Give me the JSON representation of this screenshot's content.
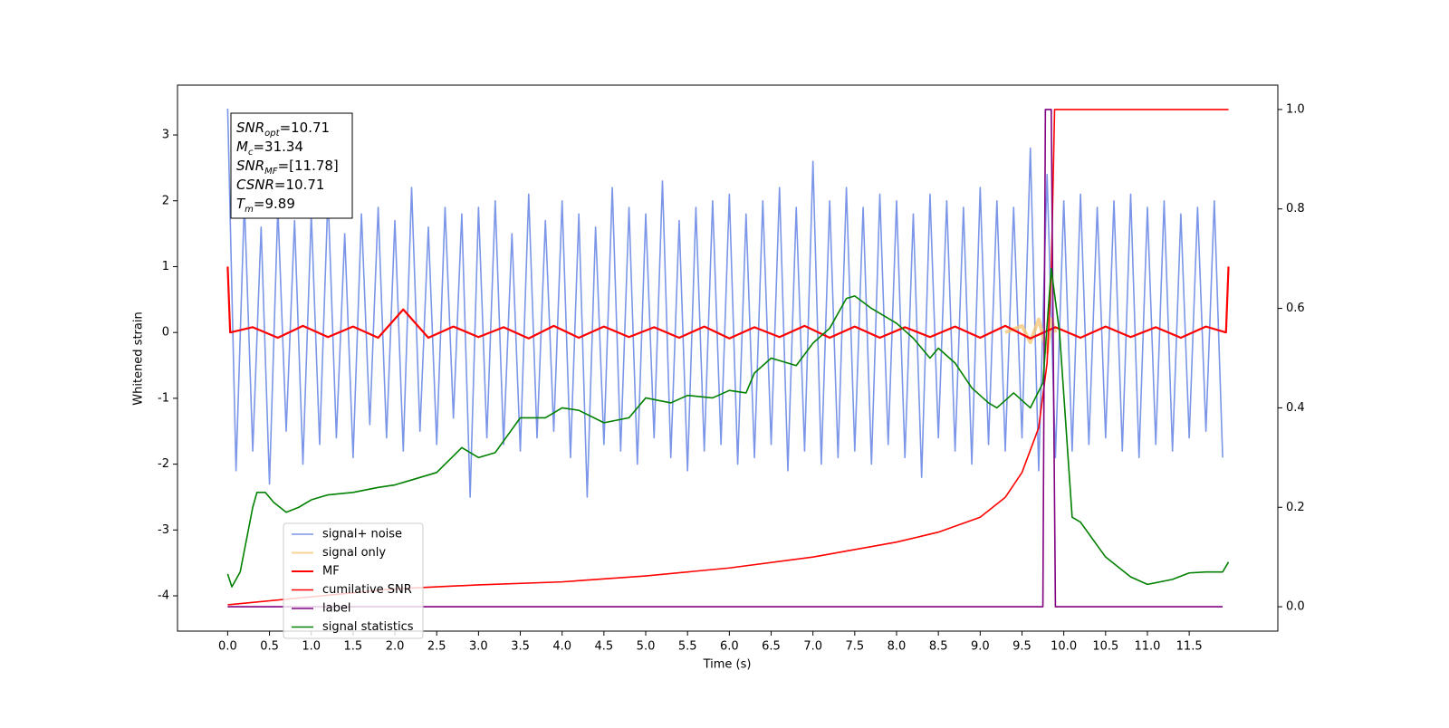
{
  "chart_data": {
    "type": "line",
    "xlabel": "Time (s)",
    "ylabel": "Whitened strain",
    "xlim": [
      -0.6,
      12.56
    ],
    "ylim": [
      -4.536,
      3.757
    ],
    "y2lim": [
      -0.049,
      1.049
    ],
    "xticks": [
      {
        "value": 0,
        "label": "0.0"
      },
      0.5,
      {
        "value": 1,
        "label": "1.0"
      },
      1.5,
      {
        "value": 2,
        "label": "2.0"
      },
      2.5,
      {
        "value": 3,
        "label": "3.0"
      },
      3.5,
      {
        "value": 4,
        "label": "4.0"
      },
      4.5,
      {
        "value": 5,
        "label": "5.0"
      },
      5.5,
      {
        "value": 6,
        "label": "6.0"
      },
      6.5,
      {
        "value": 7,
        "label": "7.0"
      },
      7.5,
      {
        "value": 8,
        "label": "8.0"
      },
      8.5,
      {
        "value": 9,
        "label": "9.0"
      },
      9.5,
      {
        "value": 10,
        "label": "10.0"
      },
      10.5,
      {
        "value": 11,
        "label": "11.0"
      },
      11.5
    ],
    "yticks": [
      -4,
      -3,
      -2,
      -1,
      0,
      1,
      2,
      3
    ],
    "y2ticks": [
      {
        "value": 0,
        "label": "0.0"
      },
      0.2,
      0.4,
      0.6,
      0.8,
      {
        "value": 1,
        "label": "1.0"
      }
    ],
    "legend": "lower left",
    "annotation": [
      {
        "symbol": "SNR",
        "subscript": "opt",
        "value": "=10.71"
      },
      {
        "symbol": "M",
        "subscript": "c",
        "value": "=31.34"
      },
      {
        "symbol": "SNR",
        "subscript": "MF",
        "value": "=[11.78]"
      },
      {
        "symbol": "CSNR",
        "value": "=10.71"
      },
      {
        "symbol": "T",
        "subscript": "m",
        "value": "=9.89"
      }
    ],
    "series": [
      {
        "name": "signal+ noise",
        "color": "#7b96e8",
        "x": [
          0.0,
          0.1,
          0.2,
          0.3,
          0.4,
          0.5,
          0.6,
          0.7,
          0.8,
          0.9,
          1.0,
          1.1,
          1.2,
          1.3,
          1.4,
          1.5,
          1.6,
          1.7,
          1.8,
          1.9,
          2.0,
          2.1,
          2.2,
          2.3,
          2.4,
          2.5,
          2.6,
          2.7,
          2.8,
          2.9,
          3.0,
          3.1,
          3.2,
          3.3,
          3.4,
          3.5,
          3.6,
          3.7,
          3.8,
          3.9,
          4.0,
          4.1,
          4.2,
          4.3,
          4.4,
          4.5,
          4.6,
          4.7,
          4.8,
          4.9,
          5.0,
          5.1,
          5.2,
          5.3,
          5.4,
          5.5,
          5.6,
          5.7,
          5.8,
          5.9,
          6.0,
          6.1,
          6.2,
          6.3,
          6.4,
          6.5,
          6.6,
          6.7,
          6.8,
          6.9,
          7.0,
          7.1,
          7.2,
          7.3,
          7.4,
          7.5,
          7.6,
          7.7,
          7.8,
          7.9,
          8.0,
          8.1,
          8.2,
          8.3,
          8.4,
          8.5,
          8.6,
          8.7,
          8.8,
          8.9,
          9.0,
          9.1,
          9.2,
          9.3,
          9.4,
          9.5,
          9.6,
          9.7,
          9.8,
          9.9,
          10.0,
          10.1,
          10.2,
          10.3,
          10.4,
          10.5,
          10.6,
          10.7,
          10.8,
          10.9,
          11.0,
          11.1,
          11.2,
          11.3,
          11.4,
          11.5,
          11.6,
          11.7,
          11.8,
          11.9
        ],
        "values": [
          3.4,
          -2.1,
          2.0,
          -1.8,
          1.6,
          -2.3,
          1.9,
          -1.5,
          1.7,
          -2.0,
          1.8,
          -1.7,
          2.1,
          -1.6,
          1.5,
          -1.9,
          1.8,
          -1.4,
          1.9,
          -1.6,
          1.7,
          -1.8,
          2.2,
          -1.5,
          1.6,
          -1.7,
          1.9,
          -1.3,
          1.8,
          -2.5,
          1.9,
          -1.6,
          2.0,
          -1.7,
          1.5,
          -1.8,
          2.1,
          -1.6,
          1.7,
          -1.5,
          2.0,
          -1.9,
          1.8,
          -2.5,
          1.6,
          -1.7,
          2.2,
          -1.8,
          1.9,
          -2.0,
          1.8,
          -1.6,
          2.3,
          -1.9,
          1.7,
          -2.1,
          1.9,
          -1.8,
          2.0,
          -1.7,
          2.1,
          -2.0,
          1.8,
          -1.9,
          2.0,
          -1.7,
          2.2,
          -2.1,
          1.9,
          -1.8,
          2.6,
          -2.0,
          2.0,
          -1.9,
          2.2,
          -1.8,
          1.9,
          -2.0,
          2.1,
          -1.7,
          2.0,
          -1.9,
          1.8,
          -2.2,
          2.1,
          -1.6,
          2.0,
          -1.8,
          1.9,
          -2.0,
          2.2,
          -1.7,
          2.0,
          -1.8,
          1.9,
          -1.6,
          2.8,
          -2.1,
          2.4,
          -1.9,
          2.0,
          -1.8,
          2.1,
          -1.7,
          1.9,
          -1.6,
          2.0,
          -1.8,
          2.1,
          -1.9,
          1.9,
          -1.7,
          2.0,
          -1.8,
          1.8,
          -1.6,
          1.9,
          -1.5,
          2.0,
          -1.9
        ]
      },
      {
        "name": "signal only",
        "color": "#f5c97a",
        "x": [
          9.3,
          9.5,
          9.6,
          9.7,
          9.8,
          9.85,
          9.9
        ],
        "values": [
          0,
          0.1,
          -0.15,
          0.2,
          -0.3,
          0.2,
          0
        ]
      },
      {
        "name": "MF",
        "color": "#ff0000",
        "x": [
          0,
          0.03,
          0.3,
          0.6,
          0.9,
          1.2,
          1.5,
          1.8,
          2.1,
          2.4,
          2.7,
          3.0,
          3.3,
          3.6,
          3.9,
          4.2,
          4.5,
          4.8,
          5.1,
          5.4,
          5.7,
          6.0,
          6.3,
          6.6,
          6.9,
          7.2,
          7.5,
          7.8,
          8.1,
          8.4,
          8.7,
          9.0,
          9.3,
          9.6,
          9.9,
          10.2,
          10.5,
          10.8,
          11.1,
          11.4,
          11.7,
          11.94,
          11.97
        ],
        "values": [
          1.0,
          0.0,
          0.08,
          -0.08,
          0.1,
          -0.07,
          0.09,
          -0.08,
          0.35,
          -0.08,
          0.09,
          -0.07,
          0.08,
          -0.09,
          0.1,
          -0.08,
          0.09,
          -0.07,
          0.08,
          -0.08,
          0.09,
          -0.09,
          0.08,
          -0.07,
          0.1,
          -0.08,
          0.09,
          -0.08,
          0.08,
          -0.07,
          0.09,
          -0.08,
          0.1,
          -0.09,
          0.08,
          -0.08,
          0.09,
          -0.07,
          0.08,
          -0.08,
          0.09,
          0.0,
          1.0
        ]
      },
      {
        "name": "cumilative SNR",
        "color": "#ff0000",
        "axis": "y2",
        "x": [
          0,
          1,
          2,
          3,
          4,
          5,
          6,
          7,
          8,
          8.5,
          9,
          9.3,
          9.5,
          9.7,
          9.8,
          9.85,
          9.89,
          11.97
        ],
        "values": [
          0.004,
          0.02,
          0.036,
          0.044,
          0.05,
          0.062,
          0.078,
          0.1,
          0.13,
          0.15,
          0.18,
          0.22,
          0.27,
          0.36,
          0.49,
          0.67,
          1.0,
          1.0
        ]
      },
      {
        "name": "label",
        "color": "#800080",
        "axis": "y2",
        "x": [
          0,
          9.75,
          9.78,
          9.85,
          9.9,
          11.9
        ],
        "values": [
          0,
          0,
          1,
          1,
          0,
          0
        ]
      },
      {
        "name": "signal statistics",
        "color": "#008000",
        "axis": "y2",
        "x": [
          0,
          0.05,
          0.15,
          0.3,
          0.35,
          0.45,
          0.55,
          0.7,
          0.85,
          1.0,
          1.2,
          1.5,
          1.8,
          2.0,
          2.2,
          2.5,
          2.8,
          3.0,
          3.2,
          3.5,
          3.8,
          4.0,
          4.2,
          4.5,
          4.8,
          5.0,
          5.3,
          5.5,
          5.8,
          6.0,
          6.2,
          6.3,
          6.5,
          6.8,
          7.0,
          7.2,
          7.4,
          7.5,
          7.7,
          8.0,
          8.2,
          8.4,
          8.5,
          8.7,
          8.9,
          9.1,
          9.2,
          9.4,
          9.6,
          9.75,
          9.85,
          9.95,
          10.1,
          10.2,
          10.5,
          10.8,
          11.0,
          11.3,
          11.5,
          11.7,
          11.9,
          11.97
        ],
        "values": [
          0.066,
          0.04,
          0.07,
          0.2,
          0.23,
          0.23,
          0.21,
          0.19,
          0.2,
          0.215,
          0.225,
          0.23,
          0.24,
          0.245,
          0.255,
          0.27,
          0.32,
          0.3,
          0.31,
          0.38,
          0.38,
          0.4,
          0.395,
          0.37,
          0.38,
          0.42,
          0.41,
          0.425,
          0.42,
          0.435,
          0.43,
          0.47,
          0.5,
          0.485,
          0.53,
          0.56,
          0.62,
          0.625,
          0.6,
          0.57,
          0.54,
          0.5,
          0.52,
          0.49,
          0.44,
          0.41,
          0.4,
          0.43,
          0.4,
          0.45,
          0.68,
          0.55,
          0.18,
          0.17,
          0.1,
          0.06,
          0.045,
          0.055,
          0.068,
          0.07,
          0.07,
          0.09
        ]
      }
    ]
  }
}
